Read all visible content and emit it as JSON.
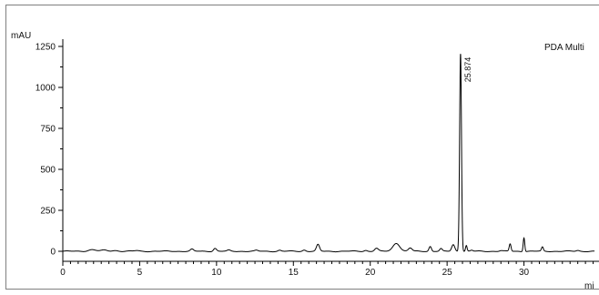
{
  "chart_data": {
    "type": "line",
    "ylabel": "mAU",
    "xlabel": "mi",
    "channel_label": "PDA Multi",
    "xlim": [
      0,
      35
    ],
    "ylim": [
      -60,
      1300
    ],
    "x_ticks": [
      0,
      5,
      10,
      15,
      20,
      25,
      30
    ],
    "y_ticks": [
      0,
      250,
      500,
      750,
      1000,
      1250
    ],
    "grid": false,
    "line_color": "#000000",
    "baseline": 12,
    "peak_label": "25.874",
    "peaks": [
      {
        "rt": 1.9,
        "height": 10,
        "width": 0.25
      },
      {
        "rt": 2.7,
        "height": 6,
        "width": 0.2
      },
      {
        "rt": 3.4,
        "height": 5,
        "width": 0.2
      },
      {
        "rt": 4.8,
        "height": 4,
        "width": 0.15
      },
      {
        "rt": 8.4,
        "height": 12,
        "width": 0.1
      },
      {
        "rt": 9.9,
        "height": 18,
        "width": 0.1
      },
      {
        "rt": 10.8,
        "height": 6,
        "width": 0.1
      },
      {
        "rt": 12.6,
        "height": 5,
        "width": 0.1
      },
      {
        "rt": 14.1,
        "height": 6,
        "width": 0.1
      },
      {
        "rt": 15.7,
        "height": 8,
        "width": 0.1
      },
      {
        "rt": 16.6,
        "height": 40,
        "width": 0.1
      },
      {
        "rt": 19.7,
        "height": 6,
        "width": 0.1
      },
      {
        "rt": 20.4,
        "height": 18,
        "width": 0.12
      },
      {
        "rt": 21.7,
        "height": 50,
        "width": 0.22
      },
      {
        "rt": 22.6,
        "height": 20,
        "width": 0.12
      },
      {
        "rt": 23.9,
        "height": 30,
        "width": 0.08
      },
      {
        "rt": 24.6,
        "height": 15,
        "width": 0.08
      },
      {
        "rt": 25.4,
        "height": 40,
        "width": 0.1
      },
      {
        "rt": 25.874,
        "height": 1210,
        "width": 0.06
      },
      {
        "rt": 26.25,
        "height": 35,
        "width": 0.05
      },
      {
        "rt": 26.6,
        "height": 6,
        "width": 0.08
      },
      {
        "rt": 28.5,
        "height": 4,
        "width": 0.1
      },
      {
        "rt": 29.1,
        "height": 45,
        "width": 0.06
      },
      {
        "rt": 30.0,
        "height": 85,
        "width": 0.05
      },
      {
        "rt": 31.2,
        "height": 25,
        "width": 0.06
      },
      {
        "rt": 33.5,
        "height": 5,
        "width": 0.1
      }
    ]
  }
}
